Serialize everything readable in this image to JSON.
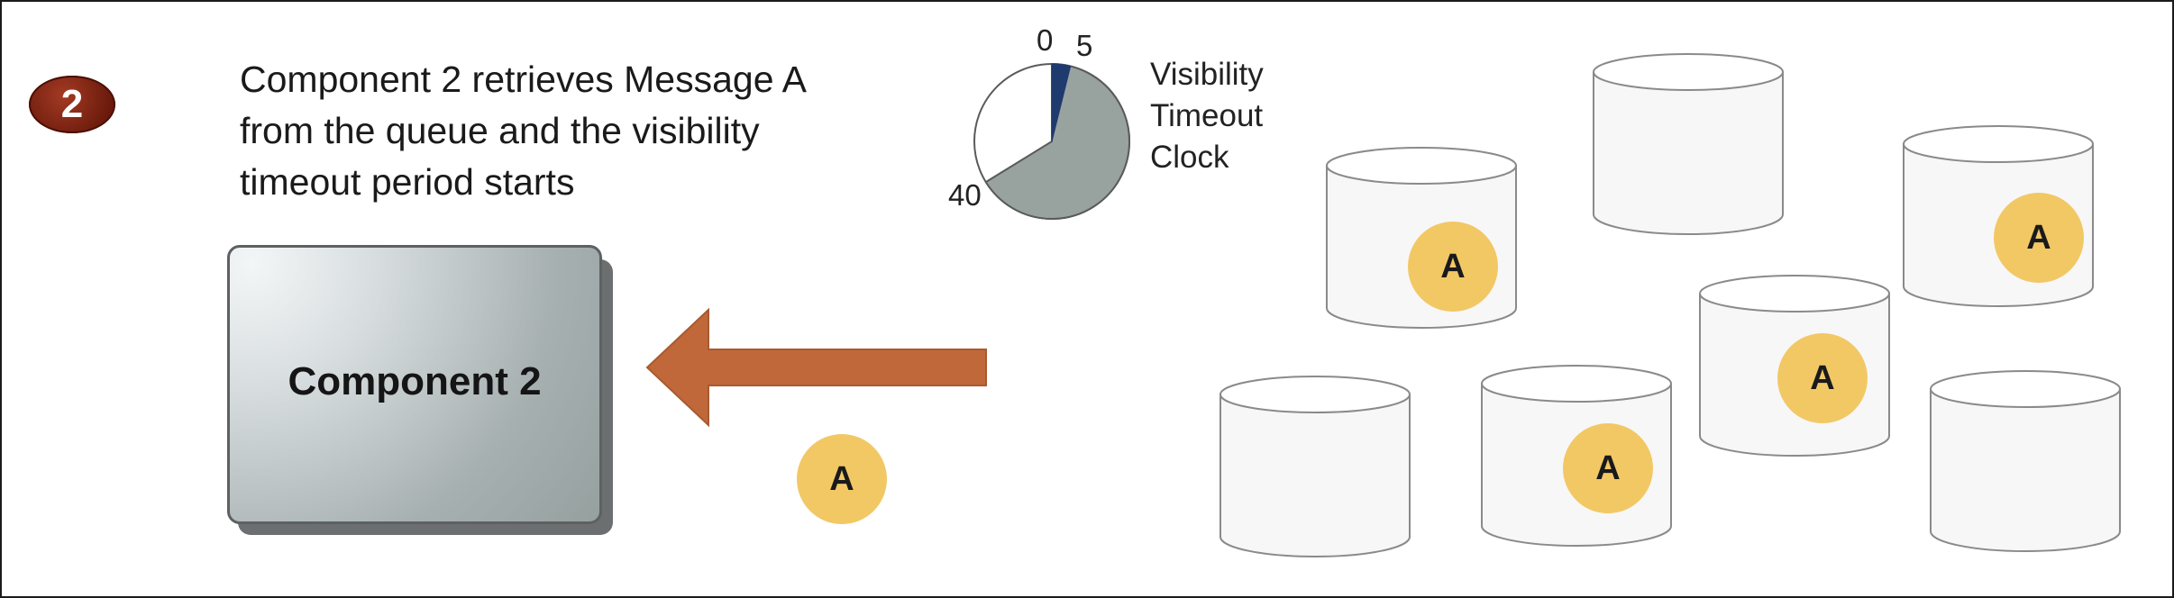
{
  "step": {
    "number": "2"
  },
  "caption": {
    "line1": "Component 2 retrieves Message A",
    "line2": "from the queue and the visibility",
    "line3": "timeout period starts"
  },
  "component": {
    "label": "Component 2"
  },
  "clock": {
    "label_lines": [
      "Visibility",
      "Timeout",
      "Clock"
    ],
    "tick_labels": {
      "start": "0",
      "elapsed": "5",
      "timeout": "40"
    },
    "colors": {
      "elapsed": "#1f3a6e",
      "remaining": "#98a29f",
      "idle": "#ffffff"
    }
  },
  "message": {
    "label": "A",
    "token_color": "#f2c865"
  },
  "arrow": {
    "color": "#c0683a"
  },
  "queue_servers": [
    {
      "has_message": true,
      "label": "A"
    },
    {
      "has_message": false,
      "label": ""
    },
    {
      "has_message": true,
      "label": "A"
    },
    {
      "has_message": true,
      "label": "A"
    },
    {
      "has_message": false,
      "label": ""
    },
    {
      "has_message": true,
      "label": "A"
    },
    {
      "has_message": false,
      "label": ""
    }
  ]
}
